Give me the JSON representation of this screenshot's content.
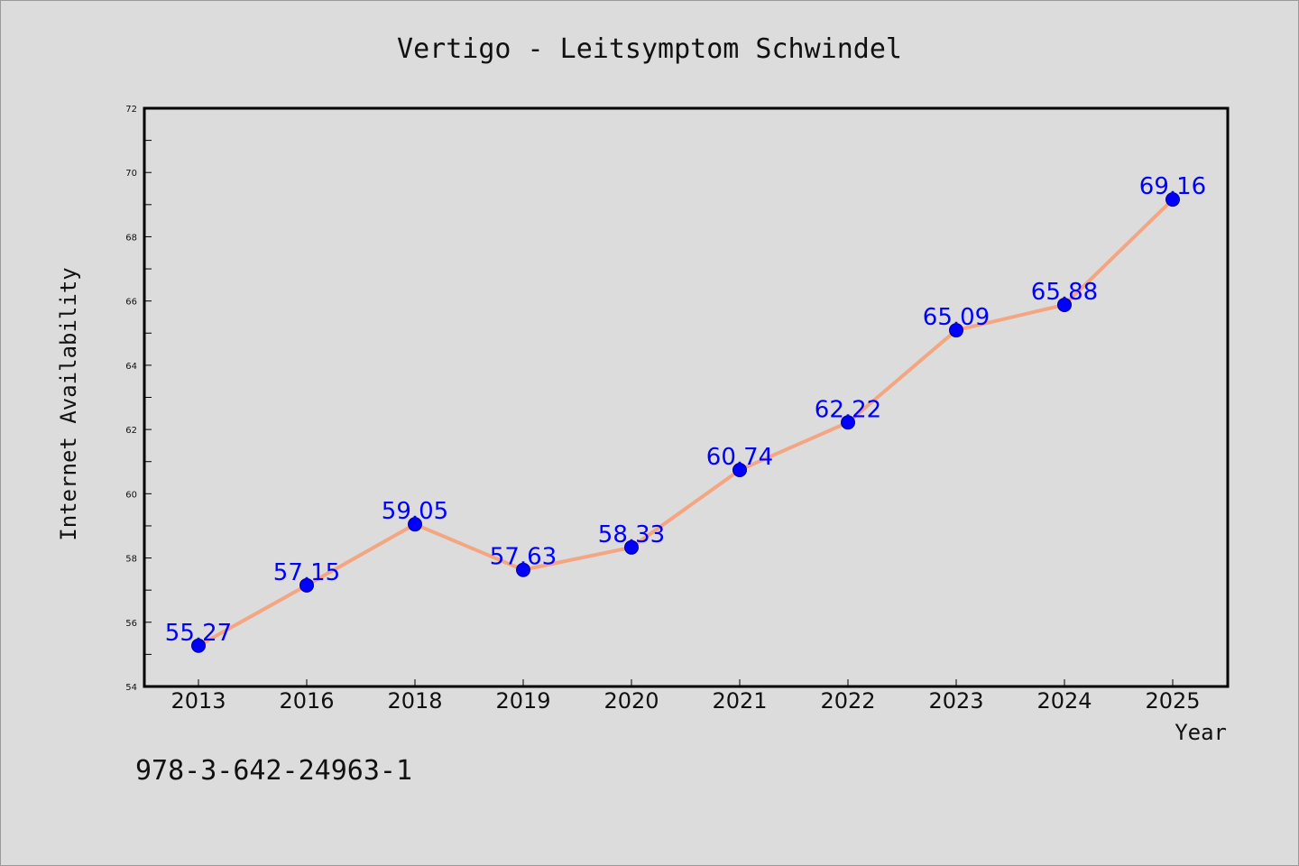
{
  "chart_data": {
    "type": "line",
    "title": "Vertigo - Leitsymptom Schwindel",
    "xlabel": "Year",
    "ylabel": "Internet Availability",
    "categories": [
      "2013",
      "2016",
      "2018",
      "2019",
      "2020",
      "2021",
      "2022",
      "2023",
      "2024",
      "2025"
    ],
    "values": [
      55.27,
      57.15,
      59.05,
      57.63,
      58.33,
      60.74,
      62.22,
      65.09,
      65.88,
      69.16
    ],
    "value_labels": [
      "55.27",
      "57.15",
      "59.05",
      "57.63",
      "58.33",
      "60.74",
      "62.22",
      "65.09",
      "65.88",
      "69.16"
    ],
    "ylim": [
      54,
      72
    ],
    "yticks": [
      "54",
      "56",
      "58",
      "60",
      "62",
      "64",
      "66",
      "68",
      "70",
      "72"
    ],
    "grid": false,
    "legend": "none",
    "line_color": "#f4a582",
    "marker_color": "#0000ff",
    "label_color": "#0000ff"
  },
  "footnote": "978-3-642-24963-1"
}
